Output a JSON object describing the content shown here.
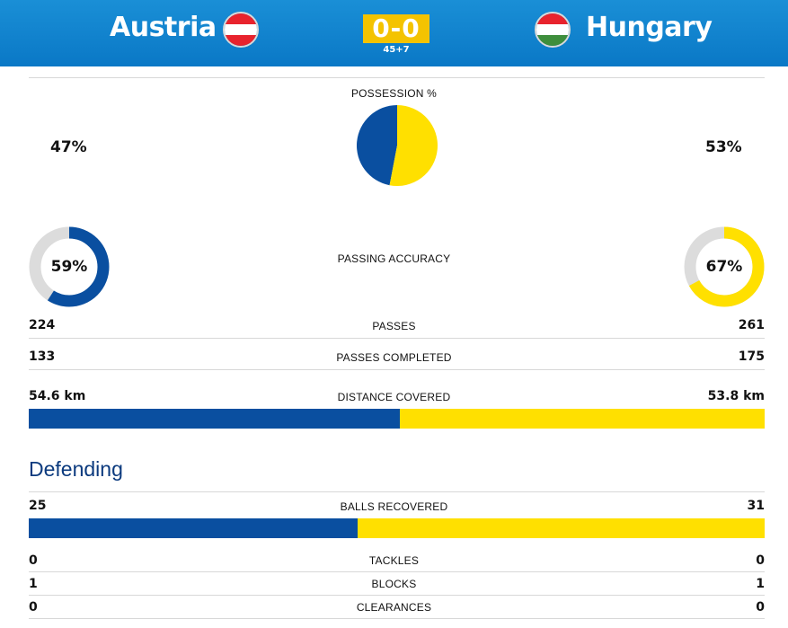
{
  "colors": {
    "home": "#0a4fa0",
    "away": "#ffe000",
    "track": "#dcdcdc",
    "header": "#0a78c6",
    "score_bg": "#f4c300"
  },
  "match": {
    "home_team": "Austria",
    "away_team": "Hungary",
    "score": "0-0",
    "time": "45+7",
    "home_flag_icon": "austria-flag-icon",
    "away_flag_icon": "hungary-flag-icon"
  },
  "possession": {
    "label": "POSSESSION %",
    "home": "47%",
    "away": "53%",
    "home_value": 47,
    "away_value": 53
  },
  "passing_accuracy": {
    "label": "PASSING ACCURACY",
    "home": "59%",
    "away": "67%",
    "home_value": 59,
    "away_value": 67
  },
  "passes": {
    "label": "PASSES",
    "home": "224",
    "away": "261"
  },
  "passes_completed": {
    "label": "PASSES COMPLETED",
    "home": "133",
    "away": "175"
  },
  "distance": {
    "label": "DISTANCE COVERED",
    "home": "54.6 km",
    "away": "53.8 km",
    "home_value": 54.6,
    "away_value": 53.8
  },
  "defending": {
    "title": "Defending",
    "balls_recovered": {
      "label": "BALLS RECOVERED",
      "home": "25",
      "away": "31",
      "home_value": 25,
      "away_value": 31
    },
    "tackles": {
      "label": "TACKLES",
      "home": "0",
      "away": "0"
    },
    "blocks": {
      "label": "BLOCKS",
      "home": "1",
      "away": "1"
    },
    "clearances": {
      "label": "CLEARANCES",
      "home": "0",
      "away": "0"
    }
  }
}
